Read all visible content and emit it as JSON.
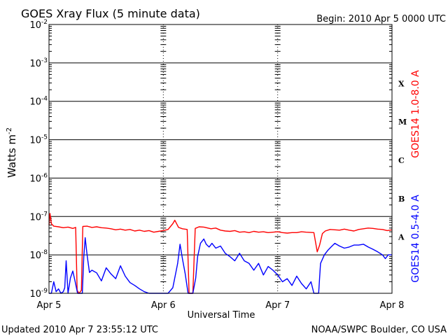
{
  "chart_data": {
    "type": "line",
    "title": "GOES Xray Flux (5 minute data)",
    "begin_label": "Begin:  2010 Apr 5 0000 UTC",
    "xlabel": "Universal Time",
    "ylabel": "Watts m",
    "ylabel_exponent": "-2",
    "y_scale": "log",
    "ylim": [
      1e-09,
      0.01
    ],
    "y_ticks": [
      {
        "base": "10",
        "exp": "-9",
        "value": 1e-09
      },
      {
        "base": "10",
        "exp": "-8",
        "value": 1e-08
      },
      {
        "base": "10",
        "exp": "-7",
        "value": 1e-07
      },
      {
        "base": "10",
        "exp": "-6",
        "value": 1e-06
      },
      {
        "base": "10",
        "exp": "-5",
        "value": 1e-05
      },
      {
        "base": "10",
        "exp": "-4",
        "value": 0.0001
      },
      {
        "base": "10",
        "exp": "-3",
        "value": 0.001
      },
      {
        "base": "10",
        "exp": "-2",
        "value": 0.01
      }
    ],
    "x_unit": "hours since 2010 Apr 5 0000 UTC",
    "xlim": [
      0,
      72
    ],
    "x_ticks": [
      {
        "label": "Apr 5",
        "value": 0
      },
      {
        "label": "Apr 6",
        "value": 24
      },
      {
        "label": "Apr 7",
        "value": 48
      },
      {
        "label": "Apr 8",
        "value": 72
      }
    ],
    "flare_classes": [
      {
        "label": "A",
        "value": 1e-08
      },
      {
        "label": "B",
        "value": 1e-07
      },
      {
        "label": "C",
        "value": 1e-06
      },
      {
        "label": "M",
        "value": 1e-05
      },
      {
        "label": "X",
        "value": 0.0001
      }
    ],
    "grid": true,
    "series": [
      {
        "name": "GOES14 1.0-8.0 A",
        "color": "#ff0000",
        "points": [
          [
            0,
            6e-08
          ],
          [
            0.2,
            1.2e-07
          ],
          [
            0.5,
            6.5e-08
          ],
          [
            1,
            5.6e-08
          ],
          [
            2,
            5.4e-08
          ],
          [
            3,
            5.1e-08
          ],
          [
            4,
            5.3e-08
          ],
          [
            5,
            4.9e-08
          ],
          [
            5.6,
            5.2e-08
          ],
          [
            5.9,
            1.2e-09
          ],
          [
            6.3,
            1e-09
          ],
          [
            6.8,
            1.2e-09
          ],
          [
            7.1,
            5.5e-08
          ],
          [
            8,
            5.6e-08
          ],
          [
            9,
            5.2e-08
          ],
          [
            10,
            5.4e-08
          ],
          [
            11,
            5.1e-08
          ],
          [
            12,
            5e-08
          ],
          [
            13,
            4.8e-08
          ],
          [
            14,
            4.5e-08
          ],
          [
            15,
            4.7e-08
          ],
          [
            16,
            4.4e-08
          ],
          [
            17,
            4.6e-08
          ],
          [
            18,
            4.2e-08
          ],
          [
            19,
            4.4e-08
          ],
          [
            20,
            4.1e-08
          ],
          [
            21,
            4.3e-08
          ],
          [
            22,
            3.9e-08
          ],
          [
            23,
            4.1e-08
          ],
          [
            24,
            4.3e-08
          ],
          [
            25,
            4.6e-08
          ],
          [
            26,
            6.5e-08
          ],
          [
            26.4,
            8e-08
          ],
          [
            27.2,
            5.2e-08
          ],
          [
            28,
            4.8e-08
          ],
          [
            29,
            4.6e-08
          ],
          [
            29.4,
            1e-09
          ],
          [
            30.2,
            1e-09
          ],
          [
            30.7,
            4.9e-08
          ],
          [
            31.5,
            5.4e-08
          ],
          [
            32.5,
            5.3e-08
          ],
          [
            34,
            4.8e-08
          ],
          [
            35,
            5e-08
          ],
          [
            36,
            4.4e-08
          ],
          [
            37,
            4.2e-08
          ],
          [
            38,
            4.1e-08
          ],
          [
            39,
            4.3e-08
          ],
          [
            40,
            3.9e-08
          ],
          [
            41,
            4e-08
          ],
          [
            42,
            3.8e-08
          ],
          [
            43,
            4.1e-08
          ],
          [
            44,
            3.9e-08
          ],
          [
            45,
            4e-08
          ],
          [
            46,
            3.8e-08
          ],
          [
            47,
            3.9e-08
          ],
          [
            48,
            4e-08
          ],
          [
            49,
            3.8e-08
          ],
          [
            50,
            3.7e-08
          ],
          [
            51,
            3.8e-08
          ],
          [
            52,
            3.8e-08
          ],
          [
            53,
            4e-08
          ],
          [
            54,
            3.9e-08
          ],
          [
            55.6,
            3.8e-08
          ],
          [
            56.3,
            1.2e-08
          ],
          [
            56.8,
            1.8e-08
          ],
          [
            57.4,
            3.6e-08
          ],
          [
            58,
            4.2e-08
          ],
          [
            59,
            4.6e-08
          ],
          [
            60,
            4.5e-08
          ],
          [
            61,
            4.4e-08
          ],
          [
            62,
            4.7e-08
          ],
          [
            63,
            4.4e-08
          ],
          [
            64,
            4.2e-08
          ],
          [
            65,
            4.6e-08
          ],
          [
            66,
            4.8e-08
          ],
          [
            67,
            5e-08
          ],
          [
            68,
            4.9e-08
          ],
          [
            69,
            4.7e-08
          ],
          [
            70,
            4.6e-08
          ],
          [
            71,
            4.3e-08
          ],
          [
            72,
            4.5e-08
          ]
        ]
      },
      {
        "name": "GOES14 0.5-4.0 A",
        "color": "#0000ff",
        "points": [
          [
            0,
            1e-09
          ],
          [
            0.5,
            1e-09
          ],
          [
            1,
            2e-09
          ],
          [
            1.5,
            1.1e-09
          ],
          [
            2,
            1.3e-09
          ],
          [
            2.5,
            1e-09
          ],
          [
            3,
            1.1e-09
          ],
          [
            3.3,
            1.4e-09
          ],
          [
            3.6,
            7e-09
          ],
          [
            4,
            1e-09
          ],
          [
            4.5,
            2.5e-09
          ],
          [
            5,
            3.8e-09
          ],
          [
            5.5,
            2e-09
          ],
          [
            6,
            1e-09
          ],
          [
            7,
            1e-09
          ],
          [
            7.3,
            9e-09
          ],
          [
            7.6,
            2.8e-08
          ],
          [
            8,
            1e-08
          ],
          [
            8.5,
            3.5e-09
          ],
          [
            9,
            4e-09
          ],
          [
            10,
            3.4e-09
          ],
          [
            11,
            2.1e-09
          ],
          [
            12,
            4.6e-09
          ],
          [
            13,
            3.2e-09
          ],
          [
            14,
            2.4e-09
          ],
          [
            15,
            5.2e-09
          ],
          [
            16,
            2.8e-09
          ],
          [
            17,
            1.9e-09
          ],
          [
            18,
            1.6e-09
          ],
          [
            19,
            1.3e-09
          ],
          [
            20,
            1.1e-09
          ],
          [
            21,
            1e-09
          ],
          [
            22,
            1e-09
          ],
          [
            23,
            1e-09
          ],
          [
            24,
            1e-09
          ],
          [
            25,
            1e-09
          ],
          [
            26,
            1.4e-09
          ],
          [
            27,
            6e-09
          ],
          [
            27.5,
            1.9e-08
          ],
          [
            28,
            8e-09
          ],
          [
            28.6,
            3.2e-09
          ],
          [
            29.2,
            1e-09
          ],
          [
            30.2,
            1e-09
          ],
          [
            30.8,
            2.5e-09
          ],
          [
            31.2,
            9e-09
          ],
          [
            31.8,
            2e-08
          ],
          [
            32.5,
            2.6e-08
          ],
          [
            33,
            1.9e-08
          ],
          [
            33.6,
            1.6e-08
          ],
          [
            34.2,
            2e-08
          ],
          [
            35,
            1.5e-08
          ],
          [
            36,
            1.7e-08
          ],
          [
            37,
            1.1e-08
          ],
          [
            38,
            9e-09
          ],
          [
            39,
            7e-09
          ],
          [
            40,
            1.1e-08
          ],
          [
            41,
            7e-09
          ],
          [
            42,
            6e-09
          ],
          [
            43,
            4e-09
          ],
          [
            44,
            6e-09
          ],
          [
            45,
            3e-09
          ],
          [
            46,
            5e-09
          ],
          [
            47,
            4e-09
          ],
          [
            48,
            3e-09
          ],
          [
            49,
            2e-09
          ],
          [
            50,
            2.4e-09
          ],
          [
            51,
            1.6e-09
          ],
          [
            52,
            2.8e-09
          ],
          [
            53,
            1.8e-09
          ],
          [
            54,
            1.3e-09
          ],
          [
            55,
            2e-09
          ],
          [
            55.6,
            1e-09
          ],
          [
            56.6,
            1e-09
          ],
          [
            57,
            6e-09
          ],
          [
            57.8,
            1e-08
          ],
          [
            58.5,
            1.3e-08
          ],
          [
            59.2,
            1.6e-08
          ],
          [
            60,
            2e-08
          ],
          [
            61,
            1.7e-08
          ],
          [
            62,
            1.5e-08
          ],
          [
            63,
            1.6e-08
          ],
          [
            64,
            1.8e-08
          ],
          [
            65,
            1.8e-08
          ],
          [
            66,
            1.9e-08
          ],
          [
            67,
            1.6e-08
          ],
          [
            68,
            1.4e-08
          ],
          [
            69,
            1.2e-08
          ],
          [
            70,
            1e-08
          ],
          [
            70.6,
            8e-09
          ],
          [
            71.2,
            1e-08
          ],
          [
            72,
            1e-08
          ]
        ]
      }
    ]
  },
  "footer": {
    "updated": "Updated 2010 Apr  7 23:55:12 UTC",
    "credit": "NOAA/SWPC Boulder, CO USA"
  }
}
